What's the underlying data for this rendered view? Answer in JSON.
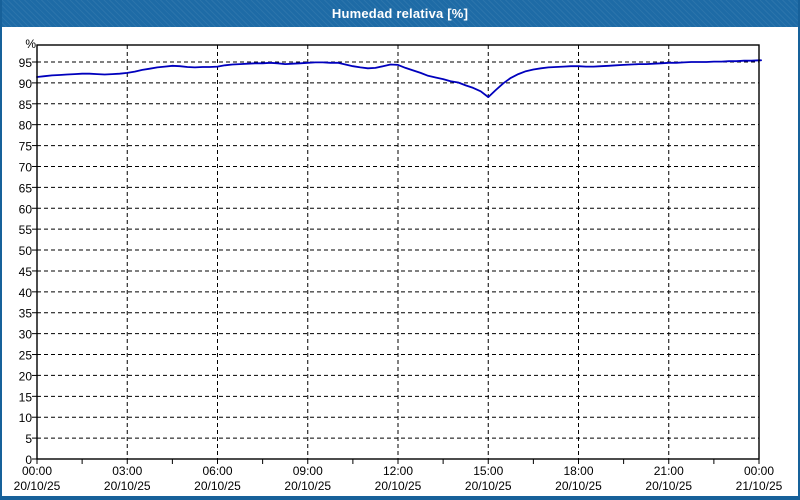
{
  "window": {
    "title": "Humedad relativa [%]"
  },
  "colors": {
    "titlebar_bg": "#1e6ba6",
    "titlebar_text": "#ffffff",
    "window_border": "#17619a",
    "panel_bg": "#ffffff",
    "grid": "#000000",
    "axis": "#000000",
    "label": "#000000",
    "series": "#0000bd"
  },
  "chart_data": {
    "type": "line",
    "title": "Humedad relativa [%]",
    "ylabel": "%",
    "xlabel": "",
    "ylim": [
      0,
      99
    ],
    "xlim_hours": [
      0,
      24.07
    ],
    "grid": "dashed",
    "legend": "none",
    "y_ticks": [
      0,
      5,
      10,
      15,
      20,
      25,
      30,
      35,
      40,
      45,
      50,
      55,
      60,
      65,
      70,
      75,
      80,
      85,
      90,
      95
    ],
    "x_minor_tick_step_hours": 1.5,
    "x_ticks": [
      {
        "hour": 0,
        "time": "00:00",
        "date": "20/10/25"
      },
      {
        "hour": 3,
        "time": "03:00",
        "date": "20/10/25"
      },
      {
        "hour": 6,
        "time": "06:00",
        "date": "20/10/25"
      },
      {
        "hour": 9,
        "time": "09:00",
        "date": "20/10/25"
      },
      {
        "hour": 12,
        "time": "12:00",
        "date": "20/10/25"
      },
      {
        "hour": 15,
        "time": "15:00",
        "date": "20/10/25"
      },
      {
        "hour": 18,
        "time": "18:00",
        "date": "20/10/25"
      },
      {
        "hour": 21,
        "time": "21:00",
        "date": "20/10/25"
      },
      {
        "hour": 24,
        "time": "00:00",
        "date": "21/10/25"
      }
    ],
    "series": [
      {
        "name": "Humedad relativa",
        "color": "#0000bd",
        "points": [
          [
            0.0,
            91.4
          ],
          [
            0.25,
            91.6
          ],
          [
            0.5,
            91.8
          ],
          [
            0.75,
            91.9
          ],
          [
            1.0,
            92.0
          ],
          [
            1.25,
            92.1
          ],
          [
            1.5,
            92.2
          ],
          [
            1.75,
            92.2
          ],
          [
            2.0,
            92.1
          ],
          [
            2.25,
            92.0
          ],
          [
            2.5,
            92.1
          ],
          [
            2.75,
            92.2
          ],
          [
            3.0,
            92.4
          ],
          [
            3.25,
            92.7
          ],
          [
            3.5,
            93.1
          ],
          [
            3.75,
            93.4
          ],
          [
            4.0,
            93.7
          ],
          [
            4.25,
            93.9
          ],
          [
            4.5,
            94.1
          ],
          [
            4.75,
            94.0
          ],
          [
            5.0,
            93.8
          ],
          [
            5.25,
            93.7
          ],
          [
            5.5,
            93.8
          ],
          [
            5.75,
            93.8
          ],
          [
            6.0,
            93.9
          ],
          [
            6.25,
            94.2
          ],
          [
            6.5,
            94.4
          ],
          [
            6.75,
            94.5
          ],
          [
            7.0,
            94.6
          ],
          [
            7.25,
            94.7
          ],
          [
            7.5,
            94.7
          ],
          [
            7.75,
            94.8
          ],
          [
            8.0,
            94.7
          ],
          [
            8.25,
            94.5
          ],
          [
            8.5,
            94.6
          ],
          [
            8.75,
            94.7
          ],
          [
            9.0,
            94.8
          ],
          [
            9.25,
            94.9
          ],
          [
            9.5,
            94.9
          ],
          [
            9.75,
            94.8
          ],
          [
            10.0,
            94.8
          ],
          [
            10.25,
            94.4
          ],
          [
            10.5,
            94.0
          ],
          [
            10.75,
            93.7
          ],
          [
            11.0,
            93.5
          ],
          [
            11.25,
            93.6
          ],
          [
            11.5,
            94.0
          ],
          [
            11.75,
            94.4
          ],
          [
            12.0,
            94.3
          ],
          [
            12.25,
            93.6
          ],
          [
            12.5,
            93.0
          ],
          [
            12.75,
            92.4
          ],
          [
            13.0,
            91.7
          ],
          [
            13.25,
            91.3
          ],
          [
            13.5,
            90.9
          ],
          [
            13.75,
            90.4
          ],
          [
            14.0,
            90.1
          ],
          [
            14.25,
            89.4
          ],
          [
            14.5,
            88.8
          ],
          [
            14.75,
            88.0
          ],
          [
            15.0,
            86.6
          ],
          [
            15.25,
            88.3
          ],
          [
            15.5,
            89.9
          ],
          [
            15.75,
            91.2
          ],
          [
            16.0,
            92.1
          ],
          [
            16.25,
            92.8
          ],
          [
            16.5,
            93.2
          ],
          [
            16.75,
            93.5
          ],
          [
            17.0,
            93.7
          ],
          [
            17.25,
            93.8
          ],
          [
            17.5,
            93.9
          ],
          [
            17.75,
            94.0
          ],
          [
            18.0,
            94.0
          ],
          [
            18.25,
            93.9
          ],
          [
            18.5,
            93.9
          ],
          [
            18.75,
            94.0
          ],
          [
            19.0,
            94.1
          ],
          [
            19.25,
            94.2
          ],
          [
            19.5,
            94.3
          ],
          [
            19.75,
            94.4
          ],
          [
            20.0,
            94.5
          ],
          [
            20.25,
            94.5
          ],
          [
            20.5,
            94.6
          ],
          [
            20.75,
            94.7
          ],
          [
            21.0,
            94.8
          ],
          [
            21.25,
            94.8
          ],
          [
            21.5,
            94.9
          ],
          [
            21.75,
            95.0
          ],
          [
            22.0,
            95.0
          ],
          [
            22.25,
            95.0
          ],
          [
            22.5,
            95.1
          ],
          [
            22.75,
            95.1
          ],
          [
            23.0,
            95.2
          ],
          [
            23.25,
            95.2
          ],
          [
            23.5,
            95.3
          ],
          [
            23.75,
            95.3
          ],
          [
            24.0,
            95.4
          ],
          [
            24.07,
            95.4
          ]
        ]
      }
    ]
  }
}
